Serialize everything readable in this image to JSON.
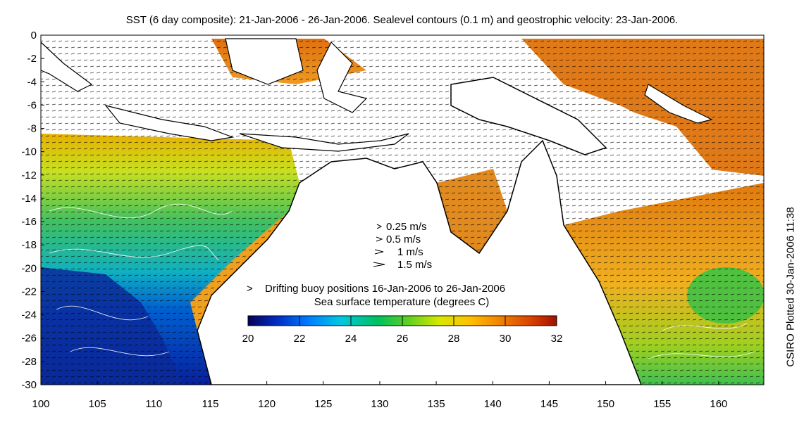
{
  "title": "SST (6 day composite): 21-Jan-2006 - 26-Jan-2006. Sealevel contours (0.1 m) and geostrophic velocity: 23-Jan-2006.",
  "side_stamp": "CSIRO Plotted 30-Jan-2006 11:38",
  "axes": {
    "x_ticks": [
      "100",
      "105",
      "110",
      "115",
      "120",
      "125",
      "130",
      "135",
      "140",
      "145",
      "150",
      "155",
      "160"
    ],
    "y_ticks": [
      "0",
      "-2",
      "-4",
      "-6",
      "-8",
      "-10",
      "-12",
      "-14",
      "-16",
      "-18",
      "-20",
      "-22",
      "-24",
      "-26",
      "-28",
      "-30"
    ],
    "xlim": [
      100,
      164
    ],
    "ylim": [
      -30,
      0
    ]
  },
  "velocity_legend": [
    {
      "label": "0.25 m/s",
      "speed": 0.25
    },
    {
      "label": "0.5 m/s",
      "speed": 0.5
    },
    {
      "label": "1 m/s",
      "speed": 1
    },
    {
      "label": "1.5 m/s",
      "speed": 1.5
    }
  ],
  "buoy_legend": {
    "marker": ">",
    "label": "Drifting buoy positions 16-Jan-2006 to 26-Jan-2006",
    "color": "#e020e0"
  },
  "colorbar": {
    "title": "Sea surface temperature (degrees C)",
    "ticks": [
      "20",
      "22",
      "24",
      "26",
      "28",
      "30",
      "32"
    ],
    "range": [
      20,
      32
    ],
    "colors": [
      "#08005a",
      "#0030c8",
      "#0080ff",
      "#00c8e0",
      "#00c060",
      "#60d020",
      "#d8e800",
      "#ffc000",
      "#f08000",
      "#d84000",
      "#a01000"
    ]
  },
  "colors": {
    "land": "#ffffff",
    "coast": "#000000",
    "contour": "#ffffff"
  }
}
